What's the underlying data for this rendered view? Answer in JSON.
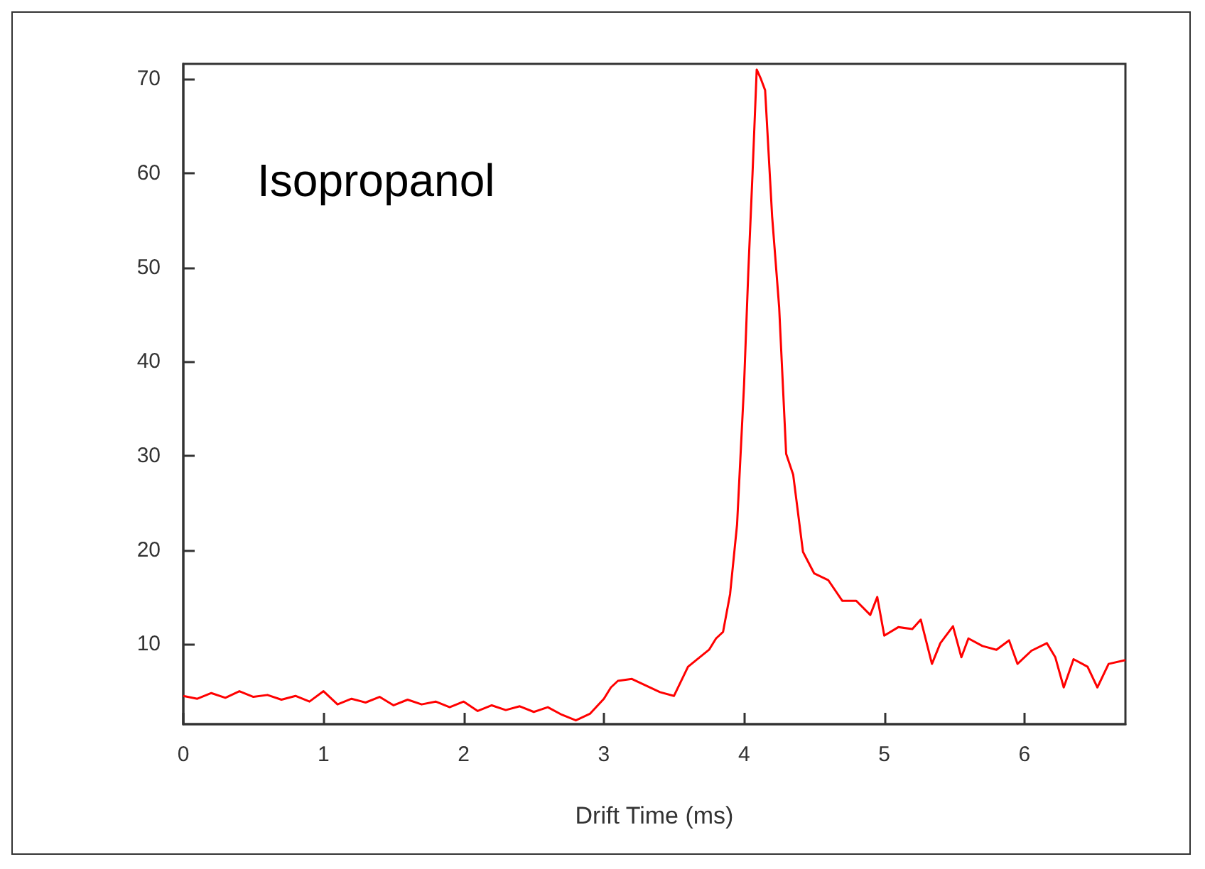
{
  "chart_data": {
    "type": "line",
    "xlabel": "Drift Time (ms)",
    "annotations": [
      "Isopropanol"
    ],
    "xlim": [
      0,
      6.72
    ],
    "ylim": [
      1.5,
      71.6
    ],
    "xticks": [
      0,
      1,
      2,
      3,
      4,
      5,
      6
    ],
    "yticks": [
      10,
      20,
      30,
      40,
      50,
      60,
      70
    ],
    "grid": false,
    "marker": "none",
    "line_style": "solid",
    "series": [
      {
        "color": "#ff0000",
        "x": [
          0,
          0.1,
          0.2,
          0.3,
          0.4,
          0.5,
          0.6,
          0.7,
          0.8,
          0.9,
          1.0,
          1.1,
          1.2,
          1.3,
          1.4,
          1.5,
          1.6,
          1.7,
          1.8,
          1.9,
          2.0,
          2.1,
          2.2,
          2.3,
          2.4,
          2.5,
          2.6,
          2.7,
          2.8,
          2.9,
          3.0,
          3.05,
          3.1,
          3.2,
          3.3,
          3.4,
          3.5,
          3.6,
          3.7,
          3.75,
          3.8,
          3.85,
          3.9,
          3.95,
          4.0,
          4.03,
          4.06,
          4.09,
          4.12,
          4.15,
          4.2,
          4.25,
          4.3,
          4.35,
          4.42,
          4.5,
          4.6,
          4.7,
          4.8,
          4.9,
          4.95,
          5.0,
          5.1,
          5.2,
          5.26,
          5.34,
          5.4,
          5.49,
          5.55,
          5.6,
          5.7,
          5.8,
          5.89,
          5.95,
          6.05,
          6.16,
          6.22,
          6.28,
          6.35,
          6.45,
          6.52,
          6.6,
          6.72
        ],
        "values": [
          4.5,
          4.2,
          4.8,
          4.3,
          5.0,
          4.4,
          4.6,
          4.1,
          4.5,
          3.9,
          5.0,
          3.6,
          4.2,
          3.8,
          4.4,
          3.5,
          4.1,
          3.6,
          3.9,
          3.3,
          3.9,
          2.9,
          3.5,
          3.0,
          3.4,
          2.8,
          3.3,
          2.5,
          1.9,
          2.6,
          4.2,
          5.4,
          6.1,
          6.3,
          5.6,
          4.9,
          4.5,
          7.6,
          8.8,
          9.4,
          10.6,
          11.3,
          15.3,
          22.7,
          37.6,
          49.5,
          59.9,
          71.0,
          70.0,
          68.8,
          55.4,
          45.8,
          30.2,
          28.0,
          19.8,
          17.5,
          16.8,
          14.6,
          14.6,
          13.1,
          15.0,
          10.9,
          11.8,
          11.6,
          12.6,
          7.9,
          10.1,
          11.9,
          8.6,
          10.6,
          9.8,
          9.4,
          10.4,
          7.9,
          9.3,
          10.1,
          8.6,
          5.4,
          8.4,
          7.6,
          5.4,
          7.9,
          8.3
        ]
      }
    ]
  }
}
